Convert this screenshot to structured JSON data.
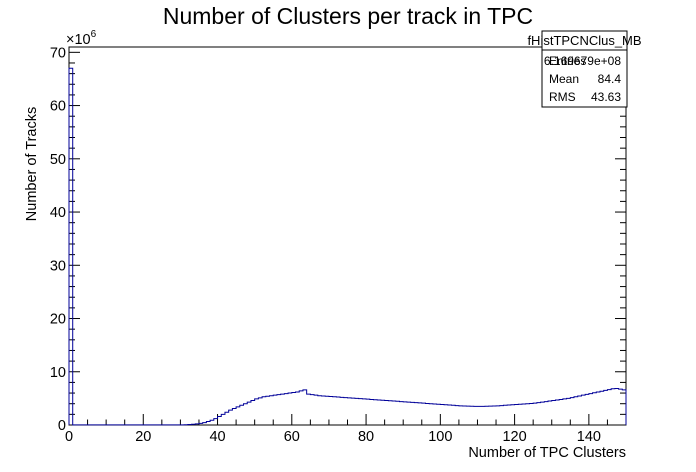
{
  "chart_data": {
    "type": "histogram",
    "title": "Number of Clusters per track in TPC",
    "xlabel": "Number of TPC Clusters",
    "ylabel": "Number of Tracks",
    "y_multiplier_label": "×10",
    "y_multiplier_exponent": "6",
    "xlim": [
      0,
      150
    ],
    "ylim": [
      0,
      71
    ],
    "y_units": "1e6 tracks",
    "x_ticks": [
      "0",
      "20",
      "40",
      "60",
      "80",
      "100",
      "120",
      "140"
    ],
    "y_ticks": [
      "0",
      "10",
      "20",
      "30",
      "40",
      "50",
      "60",
      "70"
    ],
    "line_color": "#000099",
    "bin_width": 1,
    "series": [
      {
        "values": [
          67.0,
          0.02,
          0.02,
          0.02,
          0.02,
          0.02,
          0.02,
          0.02,
          0.02,
          0.02,
          0.02,
          0.02,
          0.02,
          0.02,
          0.02,
          0.02,
          0.02,
          0.02,
          0.02,
          0.02,
          0.02,
          0.02,
          0.02,
          0.02,
          0.02,
          0.02,
          0.02,
          0.02,
          0.02,
          0.02,
          0.03,
          0.05,
          0.1,
          0.15,
          0.22,
          0.3,
          0.45,
          0.65,
          0.9,
          1.2,
          1.6,
          2.0,
          2.4,
          2.8,
          3.1,
          3.4,
          3.7,
          4.0,
          4.3,
          4.6,
          4.9,
          5.1,
          5.3,
          5.4,
          5.5,
          5.6,
          5.7,
          5.8,
          5.9,
          6.0,
          6.1,
          6.2,
          6.4,
          6.6,
          5.8,
          5.7,
          5.6,
          5.5,
          5.45,
          5.4,
          5.35,
          5.3,
          5.25,
          5.2,
          5.15,
          5.1,
          5.05,
          5.0,
          4.95,
          4.9,
          4.85,
          4.8,
          4.75,
          4.7,
          4.65,
          4.6,
          4.55,
          4.5,
          4.45,
          4.4,
          4.35,
          4.3,
          4.25,
          4.2,
          4.15,
          4.1,
          4.05,
          4.0,
          3.95,
          3.9,
          3.85,
          3.8,
          3.75,
          3.7,
          3.65,
          3.6,
          3.58,
          3.55,
          3.52,
          3.5,
          3.5,
          3.5,
          3.52,
          3.55,
          3.58,
          3.6,
          3.65,
          3.7,
          3.75,
          3.8,
          3.85,
          3.9,
          3.95,
          4.0,
          4.05,
          4.1,
          4.2,
          4.3,
          4.4,
          4.5,
          4.6,
          4.7,
          4.8,
          4.9,
          5.0,
          5.15,
          5.3,
          5.45,
          5.6,
          5.75,
          5.9,
          6.05,
          6.2,
          6.35,
          6.5,
          6.65,
          6.8,
          6.85,
          6.75,
          6.6
        ]
      }
    ]
  },
  "stats_box": {
    "name": "fHistTPCNClus_MB",
    "rows": [
      {
        "label": "Entries",
        "value": "6.169679e+08"
      },
      {
        "label": "Mean",
        "value": "84.4"
      },
      {
        "label": "RMS",
        "value": "43.63"
      }
    ]
  }
}
